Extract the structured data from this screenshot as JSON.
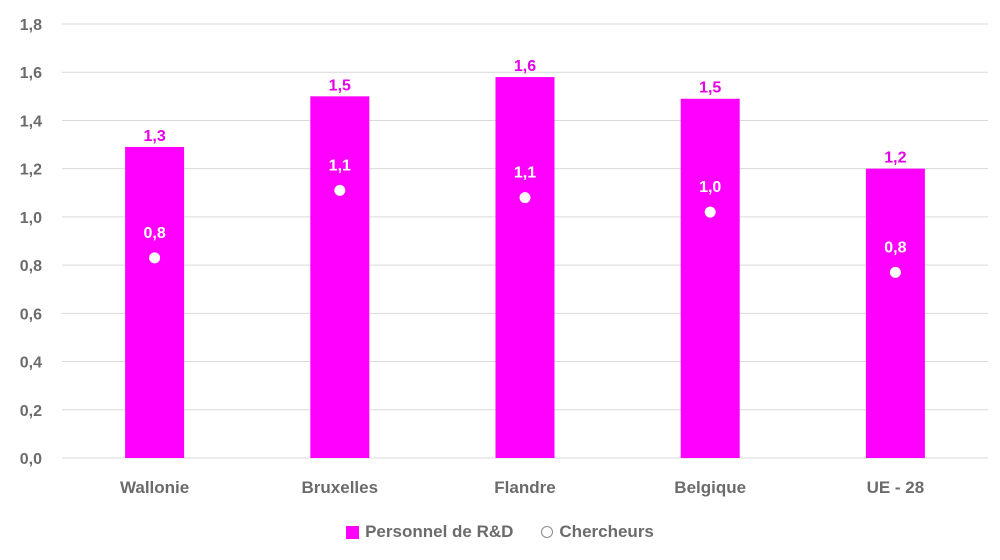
{
  "chart_data": {
    "type": "bar",
    "categories": [
      "Wallonie",
      "Bruxelles",
      "Flandre",
      "Belgique",
      "UE - 28"
    ],
    "series": [
      {
        "name": "Personnel de R&D",
        "kind": "bar",
        "values": [
          1.29,
          1.5,
          1.58,
          1.49,
          1.2
        ],
        "labels": [
          "1,3",
          "1,5",
          "1,6",
          "1,5",
          "1,2"
        ],
        "color": "#ff00ff"
      },
      {
        "name": "Chercheurs",
        "kind": "point",
        "values": [
          0.83,
          1.11,
          1.08,
          1.02,
          0.77
        ],
        "labels": [
          "0,8",
          "1,1",
          "1,1",
          "1,0",
          "0,8"
        ],
        "color": "#ffffff"
      }
    ],
    "ylim": [
      0,
      1.8
    ],
    "yticks": [
      "0,0",
      "0,2",
      "0,4",
      "0,6",
      "0,8",
      "1,0",
      "1,2",
      "1,4",
      "1,6",
      "1,8"
    ],
    "title": "",
    "xlabel": "",
    "ylabel": "",
    "grid": true,
    "legend_position": "bottom-center"
  },
  "legend": {
    "items": [
      {
        "label": "Personnel de R&D",
        "swatch": "square",
        "color": "#ff00ff"
      },
      {
        "label": "Chercheurs",
        "swatch": "circle",
        "color": "#ffffff"
      }
    ]
  },
  "colors": {
    "grid": "#d9d9d9",
    "axis_text": "#6b6b6b",
    "bar": "#ff00ff",
    "bar_label": "#e600e6"
  }
}
